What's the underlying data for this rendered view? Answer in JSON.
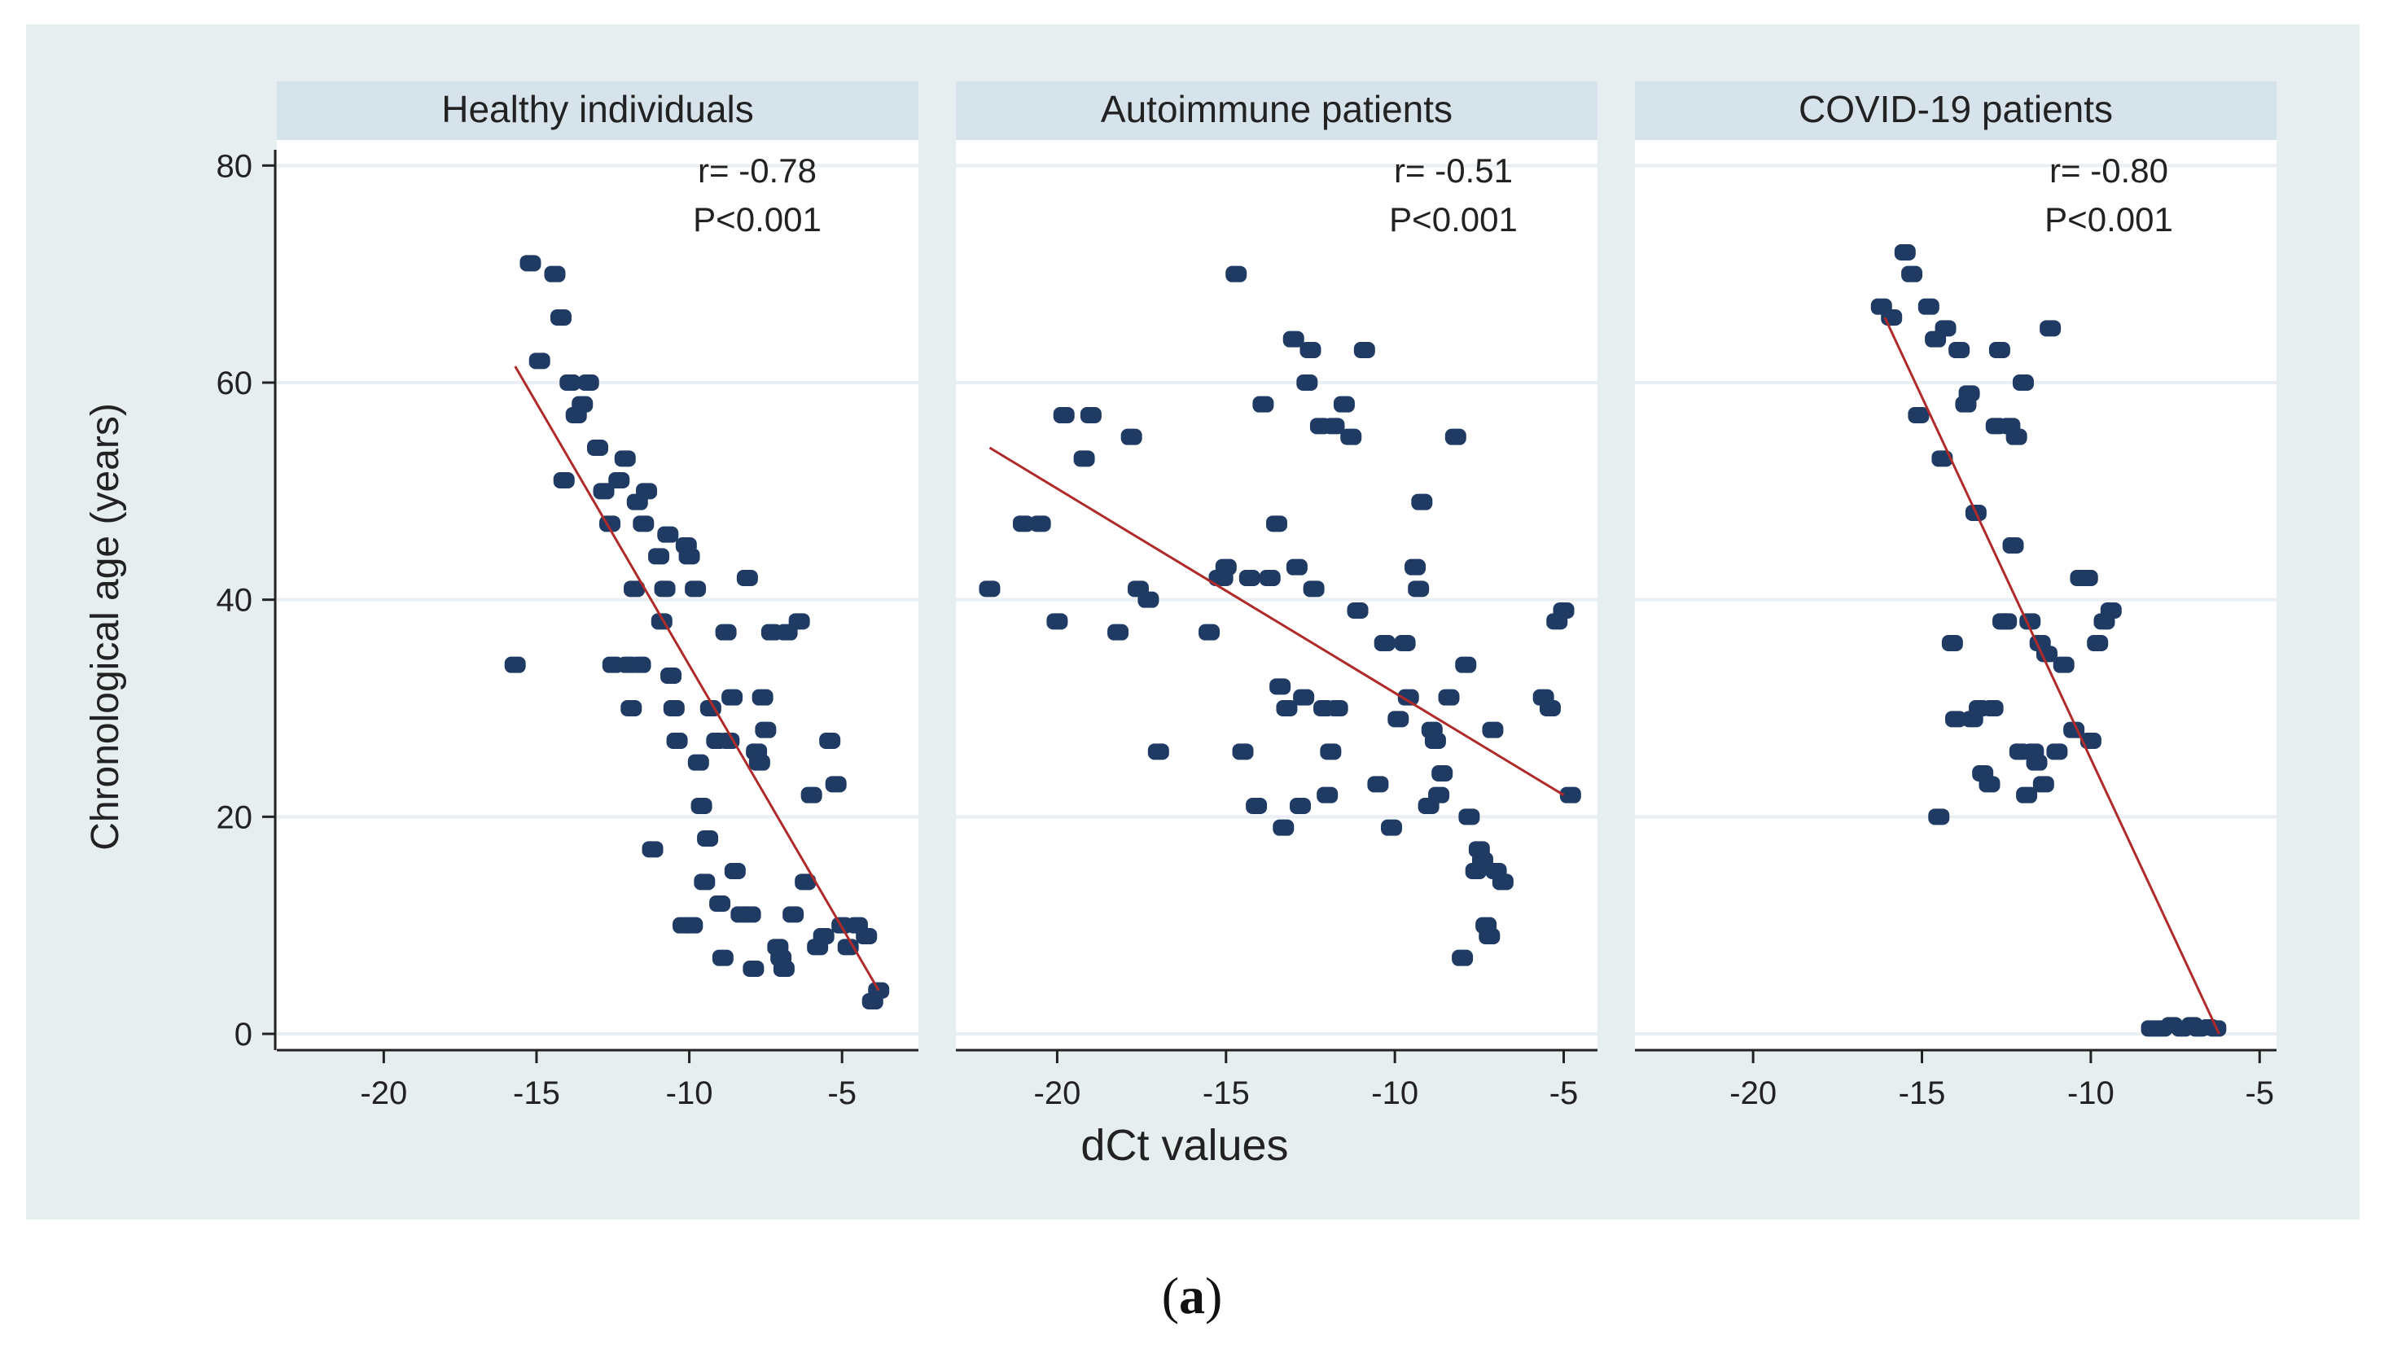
{
  "figure": {
    "xlabel": "dCt values",
    "ylabel": "Chronological age (years)",
    "caption_open": "(",
    "caption_label": "a",
    "caption_close": ")",
    "colors": {
      "outer_bg": "#e6eef0",
      "plot_bg": "#ffffff",
      "header_bg": "#d7e3eb",
      "grid": "#e9eff2",
      "point": "#1f3b63",
      "fit_line": "#b02a2a",
      "axis": "#222222"
    }
  },
  "chart_data": [
    {
      "type": "scatter",
      "title": "Healthy individuals",
      "stat_r": "r= -0.78",
      "stat_p": "P<0.001",
      "xlabel": "dCt values",
      "ylabel": "Chronological age (years)",
      "xlim": [
        -23.5,
        -2.5
      ],
      "ylim": [
        -2,
        81
      ],
      "xticks": [
        -20,
        -15,
        -10,
        -5
      ],
      "yticks": [
        0,
        20,
        40,
        60,
        80
      ],
      "fit": {
        "x": [
          -15.7,
          -3.8
        ],
        "y": [
          61.5,
          4
        ]
      },
      "points": [
        [
          -15.7,
          34
        ],
        [
          -15.2,
          71
        ],
        [
          -14.9,
          62
        ],
        [
          -14.4,
          70
        ],
        [
          -14.2,
          66
        ],
        [
          -14.1,
          51
        ],
        [
          -13.9,
          60
        ],
        [
          -13.7,
          57
        ],
        [
          -13.3,
          60
        ],
        [
          -13.0,
          54
        ],
        [
          -12.8,
          50
        ],
        [
          -12.6,
          47
        ],
        [
          -12.3,
          51
        ],
        [
          -12.1,
          53
        ],
        [
          -12.0,
          34
        ],
        [
          -11.9,
          30
        ],
        [
          -11.8,
          41
        ],
        [
          -11.7,
          49
        ],
        [
          -11.5,
          47
        ],
        [
          -11.4,
          50
        ],
        [
          -11.2,
          17
        ],
        [
          -11.0,
          44
        ],
        [
          -10.9,
          38
        ],
        [
          -10.7,
          46
        ],
        [
          -10.6,
          33
        ],
        [
          -10.5,
          30
        ],
        [
          -10.4,
          27
        ],
        [
          -10.2,
          10
        ],
        [
          -10.1,
          45
        ],
        [
          -10.0,
          44
        ],
        [
          -9.8,
          41
        ],
        [
          -9.6,
          21
        ],
        [
          -9.5,
          14
        ],
        [
          -9.4,
          18
        ],
        [
          -9.3,
          30
        ],
        [
          -9.1,
          27
        ],
        [
          -9.0,
          12
        ],
        [
          -8.9,
          7
        ],
        [
          -8.8,
          37
        ],
        [
          -8.6,
          31
        ],
        [
          -8.5,
          15
        ],
        [
          -8.3,
          11
        ],
        [
          -8.1,
          42
        ],
        [
          -7.9,
          6
        ],
        [
          -7.8,
          26
        ],
        [
          -7.6,
          31
        ],
        [
          -7.5,
          28
        ],
        [
          -7.3,
          37
        ],
        [
          -7.1,
          8
        ],
        [
          -6.9,
          6
        ],
        [
          -6.8,
          37
        ],
        [
          -6.6,
          11
        ],
        [
          -6.4,
          38
        ],
        [
          -6.2,
          14
        ],
        [
          -6.0,
          22
        ],
        [
          -5.8,
          8
        ],
        [
          -5.6,
          9
        ],
        [
          -5.4,
          27
        ],
        [
          -5.2,
          23
        ],
        [
          -5.0,
          10
        ],
        [
          -4.8,
          8
        ],
        [
          -4.5,
          10
        ],
        [
          -4.2,
          9
        ],
        [
          -4.0,
          3
        ],
        [
          -3.8,
          4
        ],
        [
          -13.5,
          58
        ],
        [
          -11.6,
          34
        ],
        [
          -9.9,
          10
        ],
        [
          -8.0,
          11
        ],
        [
          -7.0,
          7
        ],
        [
          -10.8,
          41
        ],
        [
          -12.5,
          34
        ],
        [
          -9.7,
          25
        ],
        [
          -8.7,
          27
        ],
        [
          -7.7,
          25
        ]
      ]
    },
    {
      "type": "scatter",
      "title": "Autoimmune patients",
      "stat_r": "r= -0.51",
      "stat_p": "P<0.001",
      "xlabel": "dCt values",
      "ylabel": "Chronological age (years)",
      "xlim": [
        -23,
        -4
      ],
      "ylim": [
        -2,
        81
      ],
      "xticks": [
        -20,
        -15,
        -10,
        -5
      ],
      "yticks": [
        0,
        20,
        40,
        60,
        80
      ],
      "fit": {
        "x": [
          -22,
          -5
        ],
        "y": [
          54,
          22
        ]
      },
      "points": [
        [
          -22.0,
          41
        ],
        [
          -21.0,
          47
        ],
        [
          -20.5,
          47
        ],
        [
          -20.0,
          38
        ],
        [
          -19.8,
          57
        ],
        [
          -19.2,
          53
        ],
        [
          -19.0,
          57
        ],
        [
          -18.2,
          37
        ],
        [
          -17.8,
          55
        ],
        [
          -17.6,
          41
        ],
        [
          -17.3,
          40
        ],
        [
          -17.0,
          26
        ],
        [
          -15.5,
          37
        ],
        [
          -15.2,
          42
        ],
        [
          -15.0,
          43
        ],
        [
          -14.7,
          70
        ],
        [
          -14.5,
          26
        ],
        [
          -14.3,
          42
        ],
        [
          -14.1,
          21
        ],
        [
          -13.9,
          58
        ],
        [
          -13.7,
          42
        ],
        [
          -13.5,
          47
        ],
        [
          -13.4,
          32
        ],
        [
          -13.3,
          19
        ],
        [
          -13.2,
          30
        ],
        [
          -13.0,
          64
        ],
        [
          -12.9,
          43
        ],
        [
          -12.8,
          21
        ],
        [
          -12.7,
          31
        ],
        [
          -12.6,
          60
        ],
        [
          -12.5,
          63
        ],
        [
          -12.4,
          41
        ],
        [
          -12.2,
          56
        ],
        [
          -12.0,
          22
        ],
        [
          -11.8,
          56
        ],
        [
          -11.7,
          30
        ],
        [
          -11.5,
          58
        ],
        [
          -11.3,
          55
        ],
        [
          -11.1,
          39
        ],
        [
          -10.9,
          63
        ],
        [
          -10.5,
          23
        ],
        [
          -10.3,
          36
        ],
        [
          -10.1,
          19
        ],
        [
          -9.9,
          29
        ],
        [
          -9.6,
          31
        ],
        [
          -9.4,
          43
        ],
        [
          -9.3,
          41
        ],
        [
          -9.2,
          49
        ],
        [
          -9.0,
          21
        ],
        [
          -8.9,
          28
        ],
        [
          -8.8,
          27
        ],
        [
          -8.6,
          24
        ],
        [
          -8.4,
          31
        ],
        [
          -8.2,
          55
        ],
        [
          -8.0,
          7
        ],
        [
          -7.9,
          34
        ],
        [
          -7.8,
          20
        ],
        [
          -7.6,
          15
        ],
        [
          -7.5,
          17
        ],
        [
          -7.4,
          16
        ],
        [
          -7.3,
          10
        ],
        [
          -7.2,
          9
        ],
        [
          -7.1,
          28
        ],
        [
          -7.0,
          15
        ],
        [
          -6.8,
          14
        ],
        [
          -5.6,
          31
        ],
        [
          -5.4,
          30
        ],
        [
          -5.2,
          38
        ],
        [
          -5.0,
          39
        ],
        [
          -4.8,
          22
        ],
        [
          -11.9,
          26
        ],
        [
          -9.7,
          36
        ],
        [
          -15.1,
          42
        ],
        [
          -12.1,
          30
        ],
        [
          -8.7,
          22
        ]
      ]
    },
    {
      "type": "scatter",
      "title": "COVID-19 patients",
      "stat_r": "r= -0.80",
      "stat_p": "P<0.001",
      "xlabel": "dCt values",
      "ylabel": "Chronological age (years)",
      "xlim": [
        -23.5,
        -4.5
      ],
      "ylim": [
        -2,
        81
      ],
      "xticks": [
        -20,
        -15,
        -10,
        -5
      ],
      "yticks": [
        0,
        20,
        40,
        60,
        80
      ],
      "fit": {
        "x": [
          -16.1,
          -6.2
        ],
        "y": [
          66,
          0
        ]
      },
      "points": [
        [
          -16.2,
          67
        ],
        [
          -15.9,
          66
        ],
        [
          -15.5,
          72
        ],
        [
          -15.3,
          70
        ],
        [
          -15.1,
          57
        ],
        [
          -14.8,
          67
        ],
        [
          -14.6,
          64
        ],
        [
          -14.5,
          20
        ],
        [
          -14.4,
          53
        ],
        [
          -14.3,
          65
        ],
        [
          -14.1,
          36
        ],
        [
          -13.9,
          63
        ],
        [
          -13.7,
          58
        ],
        [
          -13.6,
          59
        ],
        [
          -13.5,
          29
        ],
        [
          -13.4,
          48
        ],
        [
          -13.3,
          30
        ],
        [
          -13.2,
          24
        ],
        [
          -13.0,
          23
        ],
        [
          -12.9,
          30
        ],
        [
          -12.8,
          56
        ],
        [
          -12.7,
          63
        ],
        [
          -12.5,
          38
        ],
        [
          -12.4,
          56
        ],
        [
          -12.3,
          45
        ],
        [
          -12.2,
          55
        ],
        [
          -12.1,
          26
        ],
        [
          -12.0,
          60
        ],
        [
          -11.9,
          22
        ],
        [
          -11.8,
          38
        ],
        [
          -11.6,
          25
        ],
        [
          -11.5,
          36
        ],
        [
          -11.4,
          23
        ],
        [
          -11.3,
          35
        ],
        [
          -11.2,
          65
        ],
        [
          -11.0,
          26
        ],
        [
          -10.8,
          34
        ],
        [
          -10.5,
          28
        ],
        [
          -10.3,
          42
        ],
        [
          -10.1,
          42
        ],
        [
          -10.0,
          27
        ],
        [
          -9.8,
          36
        ],
        [
          -9.6,
          38
        ],
        [
          -9.4,
          39
        ],
        [
          -8.2,
          0.5
        ],
        [
          -7.9,
          0.5
        ],
        [
          -7.6,
          0.8
        ],
        [
          -7.3,
          0.5
        ],
        [
          -7.0,
          0.8
        ],
        [
          -6.8,
          0.5
        ],
        [
          -6.5,
          0.6
        ],
        [
          -6.3,
          0.5
        ],
        [
          -12.6,
          38
        ],
        [
          -11.7,
          26
        ],
        [
          -14.0,
          29
        ]
      ]
    }
  ]
}
